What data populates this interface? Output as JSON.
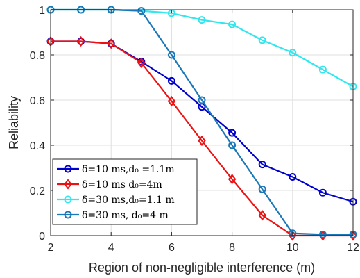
{
  "chart_data": {
    "type": "line",
    "xlabel": "Region of non-negligible interference (m)",
    "ylabel": "Reliability",
    "xlim": [
      2,
      12
    ],
    "ylim": [
      0,
      1
    ],
    "grid": true,
    "legend_position": "bottom-left",
    "x_ticks": [
      "2",
      "4",
      "6",
      "8",
      "10",
      "12"
    ],
    "y_ticks": [
      "0",
      "0.2",
      "0.4",
      "0.6",
      "0.8",
      "1"
    ],
    "x": [
      2,
      3,
      4,
      5,
      6,
      7,
      8,
      9,
      10,
      11,
      12
    ],
    "series": [
      {
        "name": "δ=10 ms,d₀ =1.1m",
        "color": "#0000cc",
        "marker": "circle",
        "values": [
          0.86,
          0.86,
          0.85,
          0.77,
          0.685,
          0.57,
          0.455,
          0.315,
          0.26,
          0.19,
          0.15
        ]
      },
      {
        "name": "δ=10 ms d₀=4m",
        "color": "#ee1111",
        "marker": "diamond",
        "values": [
          0.86,
          0.86,
          0.85,
          0.765,
          0.595,
          0.42,
          0.25,
          0.09,
          0.0,
          0.0,
          0.0
        ]
      },
      {
        "name": "δ=30 ms,d₀=1.1 m",
        "color": "#33e6ee",
        "marker": "circle",
        "values": [
          1.0,
          1.0,
          1.0,
          0.995,
          0.985,
          0.955,
          0.935,
          0.865,
          0.81,
          0.735,
          0.66
        ]
      },
      {
        "name": "δ=30 ms, d₀=4 m",
        "color": "#1a77b8",
        "marker": "circle",
        "values": [
          1.0,
          1.0,
          1.0,
          0.995,
          0.8,
          0.6,
          0.4,
          0.205,
          0.01,
          0.005,
          0.005
        ]
      }
    ]
  }
}
